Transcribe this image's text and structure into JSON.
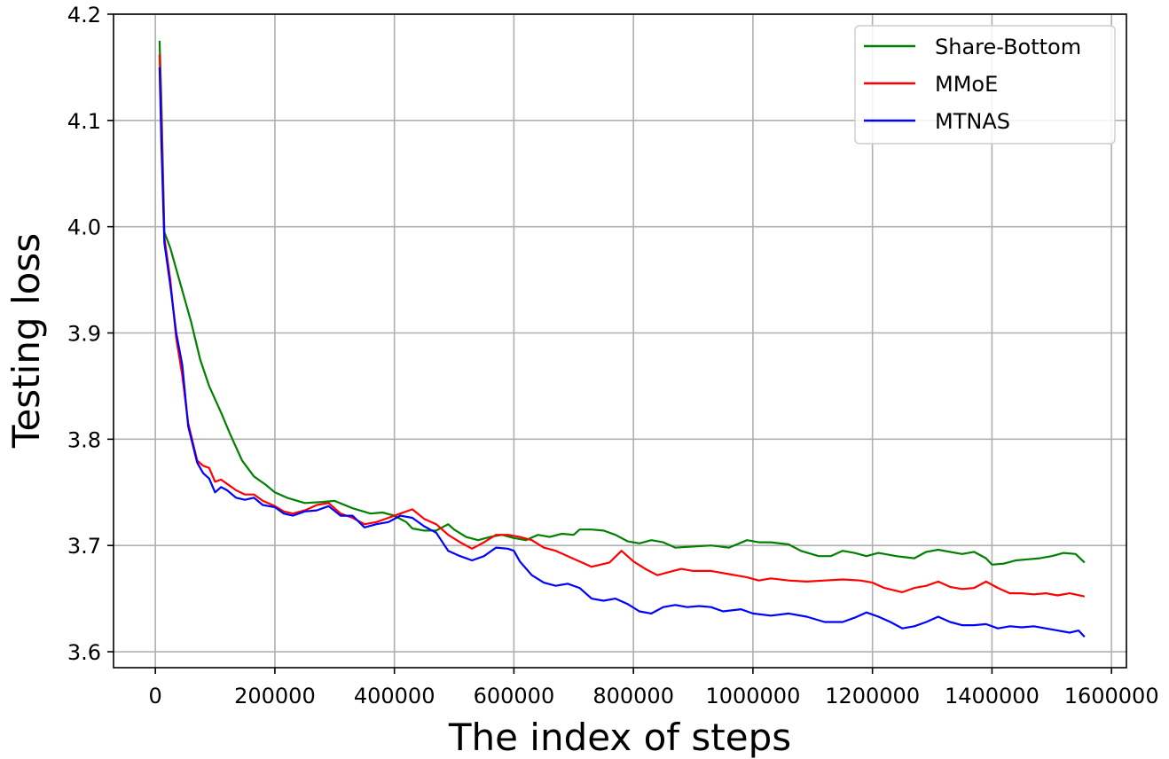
{
  "chart_data": {
    "type": "line",
    "title": "",
    "xlabel": "The index of steps",
    "ylabel": "Testing loss",
    "xlim": [
      -70000,
      1625000
    ],
    "ylim": [
      3.585,
      4.2
    ],
    "xticks": [
      0,
      200000,
      400000,
      600000,
      800000,
      1000000,
      1200000,
      1400000,
      1600000
    ],
    "xtick_labels": [
      "0",
      "200000",
      "400000",
      "600000",
      "800000",
      "1000000",
      "1200000",
      "1400000",
      "1600000"
    ],
    "yticks": [
      3.6,
      3.7,
      3.8,
      3.9,
      4.0,
      4.1,
      4.2
    ],
    "ytick_labels": [
      "3.6",
      "3.7",
      "3.8",
      "3.9",
      "4.0",
      "4.1",
      "4.2"
    ],
    "grid": true,
    "legend_position": "top-right",
    "series": [
      {
        "name": "Share-Bottom",
        "color": "#008000",
        "points": [
          [
            7000,
            4.175
          ],
          [
            10000,
            4.12
          ],
          [
            15000,
            3.995
          ],
          [
            25000,
            3.98
          ],
          [
            35000,
            3.96
          ],
          [
            45000,
            3.94
          ],
          [
            60000,
            3.91
          ],
          [
            75000,
            3.875
          ],
          [
            90000,
            3.85
          ],
          [
            110000,
            3.825
          ],
          [
            125000,
            3.805
          ],
          [
            145000,
            3.78
          ],
          [
            165000,
            3.765
          ],
          [
            185000,
            3.757
          ],
          [
            200000,
            3.75
          ],
          [
            220000,
            3.745
          ],
          [
            250000,
            3.74
          ],
          [
            280000,
            3.741
          ],
          [
            300000,
            3.742
          ],
          [
            330000,
            3.735
          ],
          [
            360000,
            3.73
          ],
          [
            380000,
            3.731
          ],
          [
            400000,
            3.728
          ],
          [
            420000,
            3.722
          ],
          [
            430000,
            3.716
          ],
          [
            450000,
            3.714
          ],
          [
            470000,
            3.714
          ],
          [
            490000,
            3.72
          ],
          [
            500000,
            3.715
          ],
          [
            520000,
            3.708
          ],
          [
            540000,
            3.705
          ],
          [
            560000,
            3.708
          ],
          [
            580000,
            3.71
          ],
          [
            600000,
            3.707
          ],
          [
            620000,
            3.705
          ],
          [
            640000,
            3.71
          ],
          [
            660000,
            3.708
          ],
          [
            680000,
            3.711
          ],
          [
            700000,
            3.71
          ],
          [
            710000,
            3.715
          ],
          [
            730000,
            3.715
          ],
          [
            750000,
            3.714
          ],
          [
            770000,
            3.71
          ],
          [
            790000,
            3.704
          ],
          [
            810000,
            3.702
          ],
          [
            830000,
            3.705
          ],
          [
            850000,
            3.703
          ],
          [
            870000,
            3.698
          ],
          [
            900000,
            3.699
          ],
          [
            930000,
            3.7
          ],
          [
            960000,
            3.698
          ],
          [
            990000,
            3.705
          ],
          [
            1010000,
            3.703
          ],
          [
            1030000,
            3.703
          ],
          [
            1060000,
            3.701
          ],
          [
            1080000,
            3.695
          ],
          [
            1110000,
            3.69
          ],
          [
            1130000,
            3.69
          ],
          [
            1150000,
            3.695
          ],
          [
            1170000,
            3.693
          ],
          [
            1190000,
            3.69
          ],
          [
            1210000,
            3.693
          ],
          [
            1240000,
            3.69
          ],
          [
            1270000,
            3.688
          ],
          [
            1290000,
            3.694
          ],
          [
            1310000,
            3.696
          ],
          [
            1330000,
            3.694
          ],
          [
            1350000,
            3.692
          ],
          [
            1370000,
            3.694
          ],
          [
            1390000,
            3.688
          ],
          [
            1400000,
            3.682
          ],
          [
            1420000,
            3.683
          ],
          [
            1440000,
            3.686
          ],
          [
            1460000,
            3.687
          ],
          [
            1480000,
            3.688
          ],
          [
            1500000,
            3.69
          ],
          [
            1520000,
            3.693
          ],
          [
            1540000,
            3.692
          ],
          [
            1555000,
            3.684
          ]
        ]
      },
      {
        "name": "MMoE",
        "color": "#ff0000",
        "points": [
          [
            7000,
            4.162
          ],
          [
            10000,
            4.1
          ],
          [
            15000,
            3.99
          ],
          [
            25000,
            3.95
          ],
          [
            35000,
            3.895
          ],
          [
            45000,
            3.86
          ],
          [
            55000,
            3.815
          ],
          [
            70000,
            3.78
          ],
          [
            80000,
            3.775
          ],
          [
            90000,
            3.773
          ],
          [
            100000,
            3.76
          ],
          [
            110000,
            3.762
          ],
          [
            120000,
            3.758
          ],
          [
            135000,
            3.752
          ],
          [
            150000,
            3.748
          ],
          [
            165000,
            3.748
          ],
          [
            180000,
            3.742
          ],
          [
            200000,
            3.737
          ],
          [
            215000,
            3.732
          ],
          [
            230000,
            3.73
          ],
          [
            250000,
            3.733
          ],
          [
            270000,
            3.738
          ],
          [
            290000,
            3.74
          ],
          [
            310000,
            3.73
          ],
          [
            330000,
            3.726
          ],
          [
            350000,
            3.72
          ],
          [
            370000,
            3.722
          ],
          [
            390000,
            3.726
          ],
          [
            410000,
            3.73
          ],
          [
            430000,
            3.734
          ],
          [
            450000,
            3.725
          ],
          [
            470000,
            3.72
          ],
          [
            490000,
            3.71
          ],
          [
            510000,
            3.703
          ],
          [
            530000,
            3.697
          ],
          [
            550000,
            3.703
          ],
          [
            570000,
            3.71
          ],
          [
            590000,
            3.71
          ],
          [
            610000,
            3.708
          ],
          [
            630000,
            3.705
          ],
          [
            650000,
            3.698
          ],
          [
            670000,
            3.695
          ],
          [
            690000,
            3.69
          ],
          [
            710000,
            3.685
          ],
          [
            730000,
            3.68
          ],
          [
            760000,
            3.684
          ],
          [
            780000,
            3.695
          ],
          [
            800000,
            3.685
          ],
          [
            820000,
            3.678
          ],
          [
            840000,
            3.672
          ],
          [
            860000,
            3.675
          ],
          [
            880000,
            3.678
          ],
          [
            900000,
            3.676
          ],
          [
            930000,
            3.676
          ],
          [
            960000,
            3.673
          ],
          [
            990000,
            3.67
          ],
          [
            1010000,
            3.667
          ],
          [
            1030000,
            3.669
          ],
          [
            1060000,
            3.667
          ],
          [
            1090000,
            3.666
          ],
          [
            1120000,
            3.667
          ],
          [
            1150000,
            3.668
          ],
          [
            1180000,
            3.667
          ],
          [
            1200000,
            3.665
          ],
          [
            1220000,
            3.66
          ],
          [
            1250000,
            3.656
          ],
          [
            1270000,
            3.66
          ],
          [
            1290000,
            3.662
          ],
          [
            1310000,
            3.666
          ],
          [
            1330000,
            3.661
          ],
          [
            1350000,
            3.659
          ],
          [
            1370000,
            3.66
          ],
          [
            1390000,
            3.666
          ],
          [
            1410000,
            3.66
          ],
          [
            1430000,
            3.655
          ],
          [
            1450000,
            3.655
          ],
          [
            1470000,
            3.654
          ],
          [
            1490000,
            3.655
          ],
          [
            1510000,
            3.653
          ],
          [
            1530000,
            3.655
          ],
          [
            1555000,
            3.652
          ]
        ]
      },
      {
        "name": "MTNAS",
        "color": "#0000ff",
        "points": [
          [
            7000,
            4.15
          ],
          [
            10000,
            4.08
          ],
          [
            15000,
            3.985
          ],
          [
            25000,
            3.945
          ],
          [
            35000,
            3.9
          ],
          [
            45000,
            3.87
          ],
          [
            55000,
            3.812
          ],
          [
            70000,
            3.778
          ],
          [
            80000,
            3.768
          ],
          [
            90000,
            3.763
          ],
          [
            100000,
            3.75
          ],
          [
            110000,
            3.755
          ],
          [
            120000,
            3.752
          ],
          [
            135000,
            3.745
          ],
          [
            150000,
            3.743
          ],
          [
            165000,
            3.745
          ],
          [
            180000,
            3.738
          ],
          [
            200000,
            3.736
          ],
          [
            215000,
            3.73
          ],
          [
            230000,
            3.728
          ],
          [
            250000,
            3.732
          ],
          [
            270000,
            3.733
          ],
          [
            290000,
            3.737
          ],
          [
            310000,
            3.728
          ],
          [
            330000,
            3.728
          ],
          [
            350000,
            3.717
          ],
          [
            370000,
            3.72
          ],
          [
            390000,
            3.722
          ],
          [
            410000,
            3.728
          ],
          [
            430000,
            3.726
          ],
          [
            450000,
            3.718
          ],
          [
            470000,
            3.712
          ],
          [
            490000,
            3.695
          ],
          [
            510000,
            3.69
          ],
          [
            530000,
            3.686
          ],
          [
            550000,
            3.69
          ],
          [
            570000,
            3.698
          ],
          [
            590000,
            3.697
          ],
          [
            600000,
            3.695
          ],
          [
            610000,
            3.685
          ],
          [
            630000,
            3.672
          ],
          [
            650000,
            3.665
          ],
          [
            670000,
            3.662
          ],
          [
            690000,
            3.664
          ],
          [
            710000,
            3.66
          ],
          [
            730000,
            3.65
          ],
          [
            750000,
            3.648
          ],
          [
            770000,
            3.65
          ],
          [
            790000,
            3.645
          ],
          [
            810000,
            3.638
          ],
          [
            830000,
            3.636
          ],
          [
            850000,
            3.642
          ],
          [
            870000,
            3.644
          ],
          [
            890000,
            3.642
          ],
          [
            910000,
            3.643
          ],
          [
            930000,
            3.642
          ],
          [
            950000,
            3.638
          ],
          [
            980000,
            3.64
          ],
          [
            1000000,
            3.636
          ],
          [
            1030000,
            3.634
          ],
          [
            1060000,
            3.636
          ],
          [
            1090000,
            3.633
          ],
          [
            1120000,
            3.628
          ],
          [
            1150000,
            3.628
          ],
          [
            1170000,
            3.632
          ],
          [
            1190000,
            3.637
          ],
          [
            1210000,
            3.633
          ],
          [
            1230000,
            3.628
          ],
          [
            1250000,
            3.622
          ],
          [
            1270000,
            3.624
          ],
          [
            1290000,
            3.628
          ],
          [
            1310000,
            3.633
          ],
          [
            1330000,
            3.628
          ],
          [
            1350000,
            3.625
          ],
          [
            1370000,
            3.625
          ],
          [
            1390000,
            3.626
          ],
          [
            1410000,
            3.622
          ],
          [
            1430000,
            3.624
          ],
          [
            1450000,
            3.623
          ],
          [
            1470000,
            3.624
          ],
          [
            1490000,
            3.622
          ],
          [
            1510000,
            3.62
          ],
          [
            1530000,
            3.618
          ],
          [
            1545000,
            3.62
          ],
          [
            1555000,
            3.614
          ]
        ]
      }
    ]
  }
}
